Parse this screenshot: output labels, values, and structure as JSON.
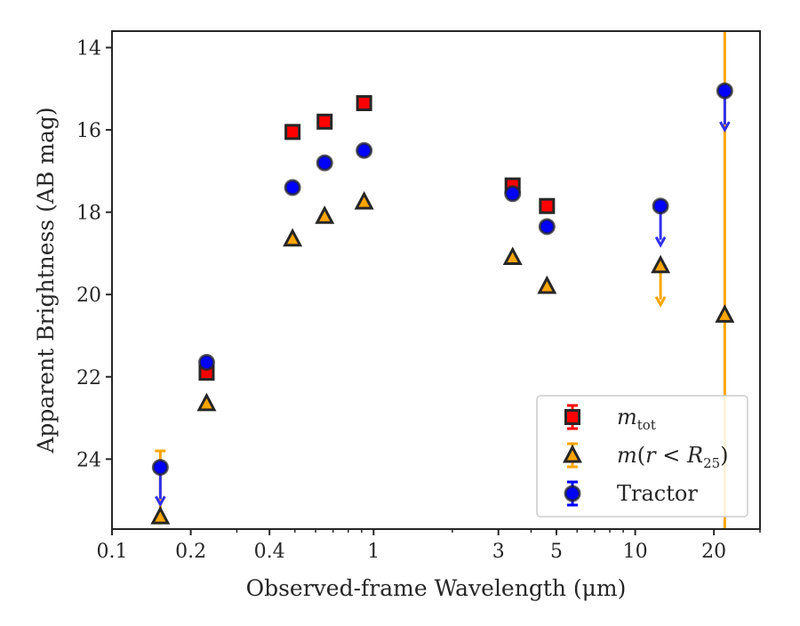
{
  "chart_data": {
    "type": "scatter",
    "xlabel": "Observed-frame Wavelength (μm)",
    "ylabel": "Apparent Brightness (AB mag)",
    "x_scale": "log",
    "xlim": [
      0.1,
      30
    ],
    "ylim": [
      25.7,
      13.6
    ],
    "y_inverted": true,
    "grid": false,
    "legend_position": "lower right",
    "x_ticks": [
      {
        "value": 0.1,
        "label": "0.1"
      },
      {
        "value": 0.2,
        "label": "0.2"
      },
      {
        "value": 0.4,
        "label": "0.4"
      },
      {
        "value": 1,
        "label": "1"
      },
      {
        "value": 3,
        "label": "3"
      },
      {
        "value": 5,
        "label": "5"
      },
      {
        "value": 10,
        "label": "10"
      },
      {
        "value": 20,
        "label": "20"
      }
    ],
    "x_minor_ticks": [
      0.3,
      0.5,
      0.6,
      0.7,
      0.8,
      0.9,
      2,
      4,
      6,
      7,
      8,
      9,
      30
    ],
    "y_ticks": [
      {
        "value": 14,
        "label": "14"
      },
      {
        "value": 16,
        "label": "16"
      },
      {
        "value": 18,
        "label": "18"
      },
      {
        "value": 20,
        "label": "20"
      },
      {
        "value": 22,
        "label": "22"
      },
      {
        "value": 24,
        "label": "24"
      }
    ],
    "series": [
      {
        "name_html": "<tspan font-style=\"italic\">m</tspan><tspan font-size=\"15\" dy=\"6\">tot</tspan>",
        "marker": "square",
        "color": "#ff0000",
        "edge_color": "#262626",
        "points": [
          {
            "x": 0.23,
            "y": 21.9
          },
          {
            "x": 0.49,
            "y": 16.05
          },
          {
            "x": 0.65,
            "y": 15.8
          },
          {
            "x": 0.92,
            "y": 15.35
          },
          {
            "x": 3.4,
            "y": 17.35
          },
          {
            "x": 4.6,
            "y": 17.85
          }
        ]
      },
      {
        "name_html": "<tspan font-style=\"italic\">m</tspan>(<tspan font-style=\"italic\">r</tspan> &lt; <tspan font-style=\"italic\">R</tspan><tspan font-size=\"15\" dy=\"6\">25</tspan><tspan dy=\"-6\">)</tspan>",
        "marker": "triangle",
        "color": "#ffa500",
        "edge_color": "#262626",
        "points": [
          {
            "x": 0.153,
            "y": 25.4,
            "upper_limit": true,
            "errbar_to": 23.8
          },
          {
            "x": 0.23,
            "y": 22.65
          },
          {
            "x": 0.49,
            "y": 18.65
          },
          {
            "x": 0.65,
            "y": 18.1
          },
          {
            "x": 0.92,
            "y": 17.75
          },
          {
            "x": 3.4,
            "y": 19.1
          },
          {
            "x": 4.6,
            "y": 19.8
          },
          {
            "x": 12.5,
            "y": 19.3,
            "upper_limit": true,
            "arrow_to": 20.25
          },
          {
            "x": 22.0,
            "y": 20.5,
            "vertical_band": true
          }
        ]
      },
      {
        "name": "Tractor",
        "marker": "circle",
        "color": "#0000ff",
        "edge_color": "#262626",
        "points": [
          {
            "x": 0.153,
            "y": 24.2,
            "upper_limit": true,
            "arrow_to": 25.1
          },
          {
            "x": 0.23,
            "y": 21.65
          },
          {
            "x": 0.49,
            "y": 17.4
          },
          {
            "x": 0.65,
            "y": 16.8
          },
          {
            "x": 0.92,
            "y": 16.5
          },
          {
            "x": 3.4,
            "y": 17.55
          },
          {
            "x": 4.6,
            "y": 18.35
          },
          {
            "x": 12.5,
            "y": 17.85,
            "upper_limit": true,
            "arrow_to": 18.8
          },
          {
            "x": 22.0,
            "y": 15.05,
            "upper_limit": true,
            "arrow_to": 16.0
          }
        ]
      }
    ]
  }
}
